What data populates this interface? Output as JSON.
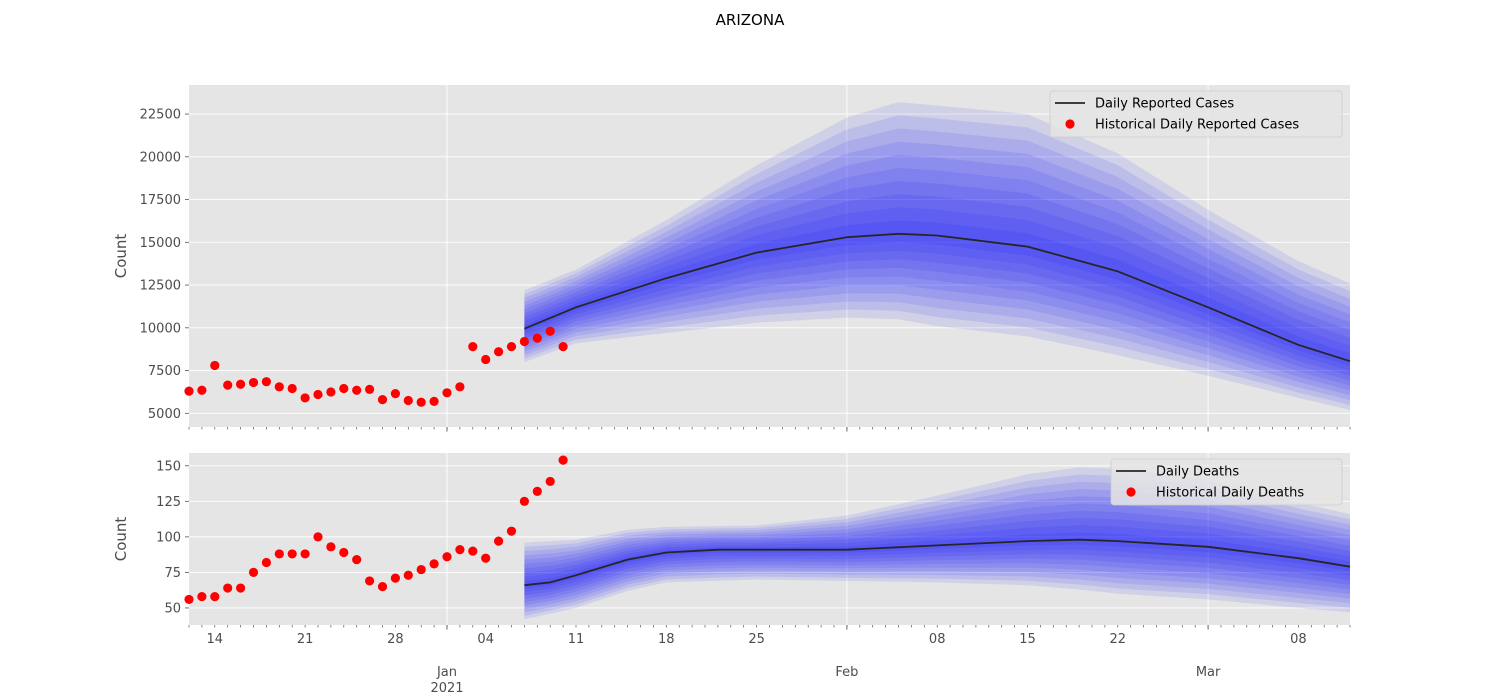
{
  "title": "ARIZONA",
  "chart_data": [
    {
      "type": "line",
      "ylabel": "Count",
      "ylim": [
        4200,
        24200
      ],
      "yticks": [
        5000,
        7500,
        10000,
        12500,
        15000,
        17500,
        20000,
        22500
      ],
      "xlim": [
        "2020-12-12",
        "2021-03-12"
      ],
      "grid": true,
      "legend": {
        "position": "top-right",
        "entries": [
          "Daily Reported Cases",
          "Historical Daily Reported Cases"
        ]
      },
      "series": [
        {
          "name": "Daily Reported Cases",
          "kind": "line",
          "color": "#262626",
          "x": [
            "2021-01-07",
            "2021-01-11",
            "2021-01-18",
            "2021-01-25",
            "2021-02-01",
            "2021-02-05",
            "2021-02-08",
            "2021-02-15",
            "2021-02-22",
            "2021-03-01",
            "2021-03-08",
            "2021-03-12"
          ],
          "values": [
            9950,
            11200,
            12900,
            14400,
            15300,
            15500,
            15400,
            14750,
            13300,
            11200,
            9000,
            8050
          ]
        },
        {
          "name": "Historical Daily Reported Cases",
          "kind": "scatter",
          "color": "#ff0000",
          "x": [
            "2020-12-12",
            "2020-12-13",
            "2020-12-14",
            "2020-12-15",
            "2020-12-16",
            "2020-12-17",
            "2020-12-18",
            "2020-12-19",
            "2020-12-20",
            "2020-12-21",
            "2020-12-22",
            "2020-12-23",
            "2020-12-24",
            "2020-12-25",
            "2020-12-26",
            "2020-12-27",
            "2020-12-28",
            "2020-12-29",
            "2020-12-30",
            "2020-12-31",
            "2021-01-01",
            "2021-01-02",
            "2021-01-03",
            "2021-01-04",
            "2021-01-05",
            "2021-01-06",
            "2021-01-07",
            "2021-01-08",
            "2021-01-09",
            "2021-01-10"
          ],
          "values": [
            6300,
            6350,
            7800,
            6650,
            6700,
            6800,
            6850,
            6550,
            6450,
            5900,
            6100,
            6250,
            6450,
            6350,
            6400,
            5800,
            6150,
            5750,
            5650,
            5700,
            6200,
            6550,
            8900,
            8150,
            8600,
            8900,
            9200,
            9400,
            9800,
            8900
          ]
        }
      ],
      "forecast_band": {
        "color": "#0000ff",
        "x": [
          "2021-01-07",
          "2021-01-11",
          "2021-01-18",
          "2021-01-25",
          "2021-02-01",
          "2021-02-05",
          "2021-02-08",
          "2021-02-15",
          "2021-02-22",
          "2021-03-01",
          "2021-03-08",
          "2021-03-12"
        ],
        "upper": [
          12200,
          13400,
          16300,
          19500,
          22300,
          23200,
          23000,
          22500,
          20200,
          16900,
          13900,
          12600
        ],
        "lower": [
          8000,
          9100,
          9700,
          10300,
          10600,
          10500,
          10100,
          9500,
          8400,
          7200,
          5900,
          5200
        ]
      }
    },
    {
      "type": "line",
      "ylabel": "Count",
      "ylim": [
        38,
        159
      ],
      "yticks": [
        50,
        75,
        100,
        125,
        150
      ],
      "xlim": [
        "2020-12-12",
        "2021-03-12"
      ],
      "grid": true,
      "legend": {
        "position": "top-right",
        "entries": [
          "Daily Deaths",
          "Historical Daily Deaths"
        ]
      },
      "series": [
        {
          "name": "Daily Deaths",
          "kind": "line",
          "color": "#262626",
          "x": [
            "2021-01-07",
            "2021-01-09",
            "2021-01-11",
            "2021-01-15",
            "2021-01-18",
            "2021-01-22",
            "2021-01-25",
            "2021-02-01",
            "2021-02-08",
            "2021-02-15",
            "2021-02-19",
            "2021-02-22",
            "2021-03-01",
            "2021-03-08",
            "2021-03-12"
          ],
          "values": [
            66,
            68,
            73,
            84,
            89,
            91,
            91,
            91,
            94,
            97,
            98,
            97,
            93,
            85,
            79
          ]
        },
        {
          "name": "Historical Daily Deaths",
          "kind": "scatter",
          "color": "#ff0000",
          "x": [
            "2020-12-12",
            "2020-12-13",
            "2020-12-14",
            "2020-12-15",
            "2020-12-16",
            "2020-12-17",
            "2020-12-18",
            "2020-12-19",
            "2020-12-20",
            "2020-12-21",
            "2020-12-22",
            "2020-12-23",
            "2020-12-24",
            "2020-12-25",
            "2020-12-26",
            "2020-12-27",
            "2020-12-28",
            "2020-12-29",
            "2020-12-30",
            "2020-12-31",
            "2021-01-01",
            "2021-01-02",
            "2021-01-03",
            "2021-01-04",
            "2021-01-05",
            "2021-01-06",
            "2021-01-07",
            "2021-01-08",
            "2021-01-09",
            "2021-01-10"
          ],
          "values": [
            56,
            58,
            58,
            64,
            64,
            75,
            82,
            88,
            88,
            88,
            100,
            93,
            89,
            84,
            69,
            65,
            71,
            73,
            77,
            81,
            86,
            91,
            90,
            85,
            97,
            104,
            125,
            132,
            139,
            154
          ]
        }
      ],
      "forecast_band": {
        "color": "#0000ff",
        "x": [
          "2021-01-07",
          "2021-01-11",
          "2021-01-15",
          "2021-01-18",
          "2021-01-25",
          "2021-02-01",
          "2021-02-08",
          "2021-02-15",
          "2021-02-19",
          "2021-02-22",
          "2021-03-01",
          "2021-03-08",
          "2021-03-12"
        ],
        "upper": [
          96,
          98,
          105,
          107,
          108,
          115,
          129,
          144,
          149,
          148,
          140,
          124,
          116
        ],
        "lower": [
          42,
          50,
          62,
          68,
          70,
          69,
          68,
          66,
          63,
          60,
          56,
          50,
          47
        ]
      }
    }
  ],
  "xaxis": {
    "ticks": [
      {
        "date": "2020-12-14",
        "label": "14"
      },
      {
        "date": "2020-12-21",
        "label": "21"
      },
      {
        "date": "2020-12-28",
        "label": "28"
      },
      {
        "date": "2021-01-04",
        "label": "04"
      },
      {
        "date": "2021-01-11",
        "label": "11"
      },
      {
        "date": "2021-01-18",
        "label": "18"
      },
      {
        "date": "2021-01-25",
        "label": "25"
      },
      {
        "date": "2021-02-08",
        "label": "08"
      },
      {
        "date": "2021-02-15",
        "label": "15"
      },
      {
        "date": "2021-02-22",
        "label": "22"
      },
      {
        "date": "2021-03-08",
        "label": "08"
      }
    ],
    "month_ticks": [
      {
        "date": "2021-01-01",
        "label": "Jan",
        "year": "2021"
      },
      {
        "date": "2021-02-01",
        "label": "Feb",
        "year": ""
      },
      {
        "date": "2021-03-01",
        "label": "Mar",
        "year": ""
      }
    ]
  }
}
